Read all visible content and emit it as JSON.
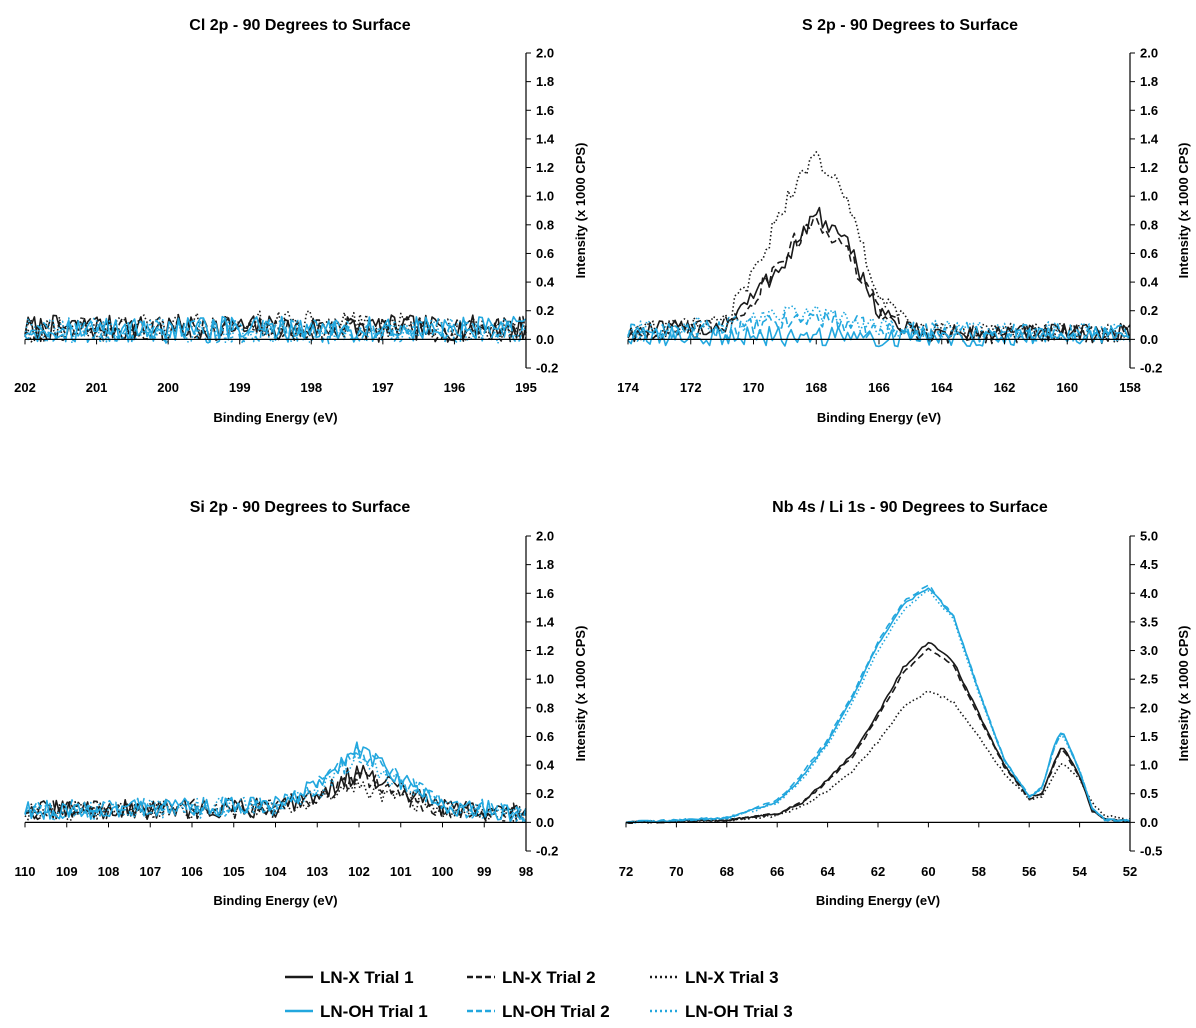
{
  "legend": {
    "entries": [
      {
        "label": "LN-X Trial 1",
        "color": "#1a1a1a",
        "dash": "solid"
      },
      {
        "label": "LN-X Trial 2",
        "color": "#1a1a1a",
        "dash": "dashed"
      },
      {
        "label": "LN-X Trial 3",
        "color": "#1a1a1a",
        "dash": "dotted"
      },
      {
        "label": "LN-OH Trial 1",
        "color": "#22a7de",
        "dash": "solid"
      },
      {
        "label": "LN-OH Trial 2",
        "color": "#22a7de",
        "dash": "dashed"
      },
      {
        "label": "LN-OH Trial 3",
        "color": "#22a7de",
        "dash": "dotted"
      }
    ]
  },
  "chart_data": [
    {
      "type": "line",
      "title": "Cl 2p - 90 Degrees to Surface",
      "xlabel": "Binding Energy (eV)",
      "ylabel": "Intensity (x 1000 CPS)",
      "x_reversed": true,
      "xlim": [
        195,
        202
      ],
      "ylim": [
        -0.2,
        2.0
      ],
      "xticks": [
        202,
        201,
        200,
        199,
        198,
        197,
        196,
        195
      ],
      "yticks": [
        "2.0",
        "1.8",
        "1.6",
        "1.4",
        "1.2",
        "1.0",
        "0.8",
        "0.6",
        "0.4",
        "0.2",
        "0.0",
        "-0.2"
      ],
      "noise": 0.09,
      "series": [
        {
          "name": "LN-X Trial 1",
          "x": [
            202,
            195
          ],
          "y": [
            0.08,
            0.08
          ]
        },
        {
          "name": "LN-X Trial 2",
          "x": [
            202,
            195
          ],
          "y": [
            0.07,
            0.07
          ]
        },
        {
          "name": "LN-X Trial 3",
          "x": [
            202,
            198,
            195
          ],
          "y": [
            0.06,
            0.12,
            0.06
          ]
        },
        {
          "name": "LN-OH Trial 1",
          "x": [
            202,
            195
          ],
          "y": [
            0.07,
            0.07
          ]
        },
        {
          "name": "LN-OH Trial 2",
          "x": [
            202,
            195
          ],
          "y": [
            0.06,
            0.06
          ]
        },
        {
          "name": "LN-OH Trial 3",
          "x": [
            202,
            195
          ],
          "y": [
            0.06,
            0.06
          ]
        }
      ]
    },
    {
      "type": "line",
      "title": "S 2p - 90 Degrees to Surface",
      "xlabel": "Binding Energy (eV)",
      "ylabel": "Intensity (x 1000 CPS)",
      "x_reversed": true,
      "xlim": [
        158,
        174
      ],
      "ylim": [
        -0.2,
        2.0
      ],
      "xticks": [
        174,
        172,
        170,
        168,
        166,
        164,
        162,
        160,
        158
      ],
      "yticks": [
        "2.0",
        "1.8",
        "1.6",
        "1.4",
        "1.2",
        "1.0",
        "0.8",
        "0.6",
        "0.4",
        "0.2",
        "0.0",
        "-0.2"
      ],
      "noise": 0.07,
      "series": [
        {
          "name": "LN-X Trial 1",
          "x": [
            174,
            171,
            170,
            169,
            168,
            167,
            166,
            165,
            164,
            158
          ],
          "y": [
            0.05,
            0.08,
            0.3,
            0.55,
            0.88,
            0.65,
            0.2,
            0.05,
            0.04,
            0.04
          ]
        },
        {
          "name": "LN-X Trial 2",
          "x": [
            174,
            171,
            170,
            169,
            168,
            167,
            166,
            165,
            164,
            158
          ],
          "y": [
            0.04,
            0.08,
            0.28,
            0.6,
            0.85,
            0.6,
            0.2,
            0.06,
            0.04,
            0.04
          ]
        },
        {
          "name": "LN-X Trial 3",
          "x": [
            174,
            171,
            170,
            169,
            168,
            167,
            166,
            165,
            164,
            158
          ],
          "y": [
            0.05,
            0.1,
            0.45,
            0.95,
            1.3,
            0.95,
            0.3,
            0.08,
            0.05,
            0.05
          ]
        },
        {
          "name": "LN-OH Trial 1",
          "x": [
            174,
            158
          ],
          "y": [
            0.02,
            0.02
          ]
        },
        {
          "name": "LN-OH Trial 2",
          "x": [
            174,
            170,
            168,
            166,
            158
          ],
          "y": [
            0.04,
            0.08,
            0.16,
            0.06,
            0.04
          ]
        },
        {
          "name": "LN-OH Trial 3",
          "x": [
            174,
            170,
            168,
            166,
            158
          ],
          "y": [
            0.05,
            0.12,
            0.2,
            0.07,
            0.05
          ]
        }
      ]
    },
    {
      "type": "line",
      "title": "Si 2p - 90 Degrees to Surface",
      "xlabel": "Binding Energy (eV)",
      "ylabel": "Intensity (x 1000 CPS)",
      "x_reversed": true,
      "xlim": [
        98,
        110
      ],
      "ylim": [
        -0.2,
        2.0
      ],
      "xticks": [
        110,
        109,
        108,
        107,
        106,
        105,
        104,
        103,
        102,
        101,
        100,
        99,
        98
      ],
      "yticks": [
        "2.0",
        "1.8",
        "1.6",
        "1.4",
        "1.2",
        "1.0",
        "0.8",
        "0.6",
        "0.4",
        "0.2",
        "0.0",
        "-0.2"
      ],
      "noise": 0.07,
      "series": [
        {
          "name": "LN-X Trial 1",
          "x": [
            110,
            104,
            103,
            102,
            101,
            100,
            98
          ],
          "y": [
            0.08,
            0.1,
            0.2,
            0.35,
            0.22,
            0.1,
            0.06
          ]
        },
        {
          "name": "LN-X Trial 2",
          "x": [
            110,
            104,
            103,
            102,
            101,
            100,
            98
          ],
          "y": [
            0.09,
            0.1,
            0.18,
            0.3,
            0.2,
            0.1,
            0.06
          ]
        },
        {
          "name": "LN-X Trial 3",
          "x": [
            110,
            104,
            103,
            102,
            101,
            100,
            98
          ],
          "y": [
            0.07,
            0.1,
            0.15,
            0.25,
            0.18,
            0.08,
            0.05
          ]
        },
        {
          "name": "LN-OH Trial 1",
          "x": [
            110,
            104,
            103,
            102,
            101,
            100,
            98
          ],
          "y": [
            0.08,
            0.12,
            0.25,
            0.52,
            0.3,
            0.12,
            0.06
          ]
        },
        {
          "name": "LN-OH Trial 2",
          "x": [
            110,
            104,
            103,
            102,
            101,
            100,
            98
          ],
          "y": [
            0.08,
            0.12,
            0.25,
            0.48,
            0.3,
            0.12,
            0.06
          ]
        },
        {
          "name": "LN-OH Trial 3",
          "x": [
            110,
            104,
            103,
            102,
            101,
            100,
            98
          ],
          "y": [
            0.07,
            0.11,
            0.22,
            0.45,
            0.28,
            0.1,
            0.06
          ]
        }
      ]
    },
    {
      "type": "line",
      "title": "Nb 4s / Li 1s - 90 Degrees to Surface",
      "xlabel": "Binding Energy (eV)",
      "ylabel": "Intensity (x 1000 CPS)",
      "x_reversed": true,
      "xlim": [
        52,
        72
      ],
      "ylim": [
        -0.5,
        5.0
      ],
      "xticks": [
        72,
        70,
        68,
        66,
        64,
        62,
        60,
        58,
        56,
        54,
        52
      ],
      "yticks": [
        "5.0",
        "4.5",
        "4.0",
        "3.5",
        "3.0",
        "2.5",
        "2.0",
        "1.5",
        "1.0",
        "0.5",
        "0.0",
        "-0.5"
      ],
      "noise": 0.02,
      "series": [
        {
          "name": "LN-X Trial 1",
          "x": [
            72,
            68,
            66,
            65,
            64,
            63,
            62,
            61,
            60,
            59,
            58,
            57,
            56,
            55.5,
            55,
            54.7,
            54,
            53.5,
            53,
            52
          ],
          "y": [
            0.0,
            0.04,
            0.15,
            0.35,
            0.75,
            1.2,
            1.9,
            2.7,
            3.15,
            2.8,
            1.9,
            1.0,
            0.45,
            0.5,
            1.05,
            1.35,
            0.8,
            0.2,
            0.05,
            0.02
          ]
        },
        {
          "name": "LN-X Trial 2",
          "x": [
            72,
            68,
            66,
            65,
            64,
            63,
            62,
            61,
            60,
            59,
            58,
            57,
            56,
            55.5,
            55,
            54.7,
            54,
            53.5,
            53,
            52
          ],
          "y": [
            0.0,
            0.04,
            0.15,
            0.35,
            0.72,
            1.15,
            1.85,
            2.6,
            3.05,
            2.72,
            1.85,
            0.98,
            0.42,
            0.5,
            1.0,
            1.3,
            0.8,
            0.22,
            0.05,
            0.02
          ]
        },
        {
          "name": "LN-X Trial 3",
          "x": [
            72,
            68,
            66,
            65,
            64,
            63,
            62,
            61,
            60,
            59,
            58,
            57,
            56,
            55.5,
            55,
            54.7,
            54,
            53.5,
            53,
            52
          ],
          "y": [
            0.0,
            0.03,
            0.12,
            0.28,
            0.55,
            0.9,
            1.4,
            2.0,
            2.3,
            2.1,
            1.5,
            0.85,
            0.4,
            0.45,
            0.85,
            1.05,
            0.75,
            0.35,
            0.12,
            0.05
          ]
        },
        {
          "name": "LN-OH Trial 1",
          "x": [
            72,
            68,
            66,
            65,
            64,
            63,
            62,
            61,
            60,
            59,
            58,
            57,
            56,
            55.5,
            55,
            54.7,
            54,
            53.5,
            53,
            52
          ],
          "y": [
            0.0,
            0.08,
            0.35,
            0.8,
            1.4,
            2.2,
            3.1,
            3.8,
            4.1,
            3.6,
            2.3,
            1.1,
            0.45,
            0.6,
            1.35,
            1.6,
            0.9,
            0.25,
            0.05,
            0.02
          ]
        },
        {
          "name": "LN-OH Trial 2",
          "x": [
            72,
            68,
            66,
            65,
            64,
            63,
            62,
            61,
            60,
            59,
            58,
            57,
            56,
            55.5,
            55,
            54.7,
            54,
            53.5,
            53,
            52
          ],
          "y": [
            0.0,
            0.08,
            0.38,
            0.85,
            1.45,
            2.25,
            3.15,
            3.85,
            4.15,
            3.6,
            2.3,
            1.1,
            0.45,
            0.6,
            1.3,
            1.6,
            0.9,
            0.25,
            0.05,
            0.02
          ]
        },
        {
          "name": "LN-OH Trial 3",
          "x": [
            72,
            68,
            66,
            65,
            64,
            63,
            62,
            61,
            60,
            59,
            58,
            57,
            56,
            55.5,
            55,
            54.7,
            54,
            53.5,
            53,
            52
          ],
          "y": [
            0.0,
            0.07,
            0.33,
            0.75,
            1.35,
            2.1,
            3.0,
            3.7,
            4.05,
            3.55,
            2.25,
            1.08,
            0.45,
            0.6,
            1.3,
            1.55,
            0.9,
            0.25,
            0.05,
            0.02
          ]
        }
      ]
    }
  ]
}
